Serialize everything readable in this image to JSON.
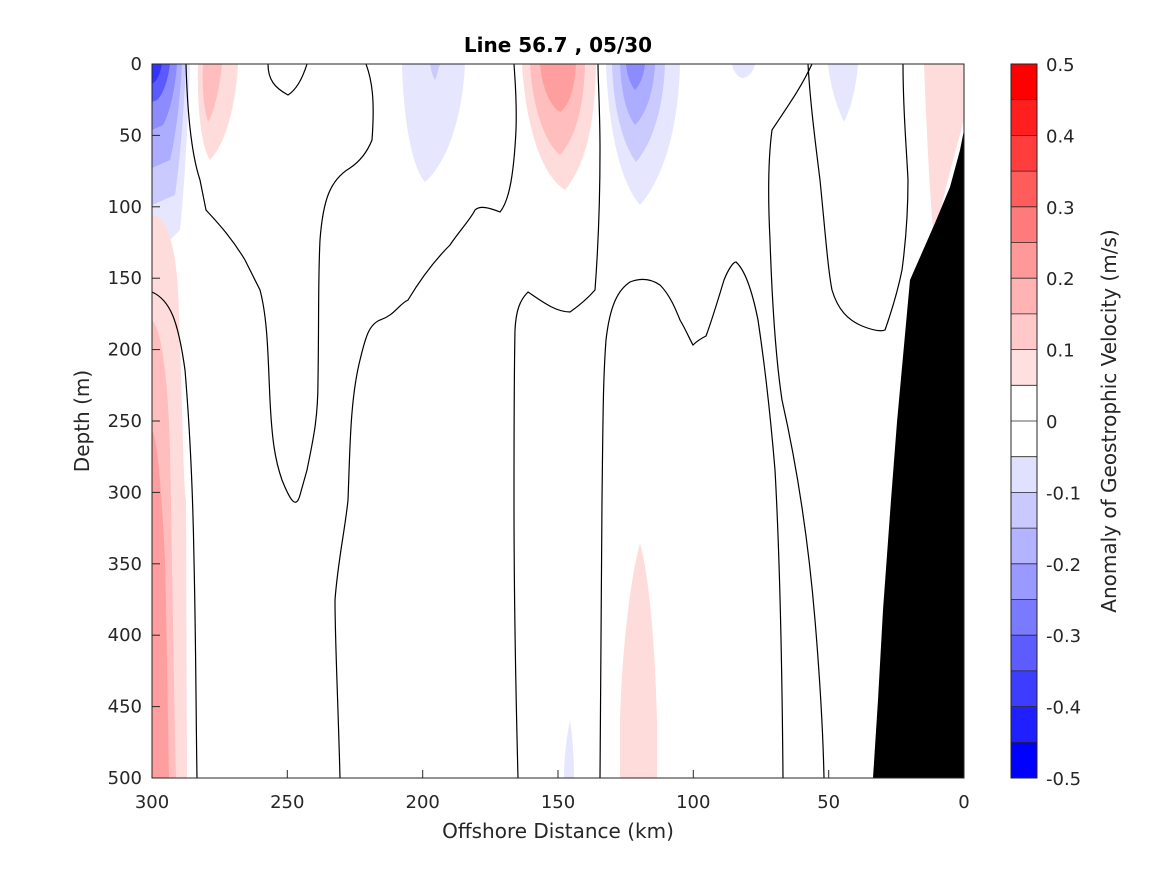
{
  "chart_data": {
    "type": "heatmap",
    "title": "Line 56.7 , 05/30",
    "xlabel": "Offshore Distance (km)",
    "ylabel": "Depth (m)",
    "x_direction": "reversed",
    "xlim": [
      0,
      300
    ],
    "ylim": [
      0,
      500
    ],
    "x_ticks": [
      "300",
      "250",
      "200",
      "150",
      "100",
      "50",
      "0"
    ],
    "y_ticks": [
      "0",
      "50",
      "100",
      "150",
      "200",
      "250",
      "300",
      "350",
      "400",
      "450",
      "500"
    ],
    "colorbar": {
      "label": "Anomaly of Geostrophic Velocity (m/s)",
      "range": [
        -0.5,
        0.5
      ],
      "tick_labels": [
        "0.5",
        "0.4",
        "0.3",
        "0.2",
        "0.1",
        "0",
        "-0.1",
        "-0.2",
        "-0.3",
        "-0.4",
        "-0.5"
      ],
      "levels": [
        0.5,
        0.45,
        0.4,
        0.35,
        0.3,
        0.25,
        0.2,
        0.15,
        0.1,
        0.05,
        0,
        -0.05,
        -0.1,
        -0.15,
        -0.2,
        -0.25,
        -0.3,
        -0.35,
        -0.4,
        -0.45,
        -0.5
      ]
    },
    "anomaly_regions": [
      {
        "sign": "negative",
        "value": -0.35,
        "x_range": [
          289,
          300
        ],
        "depth_range": [
          0,
          130
        ]
      },
      {
        "sign": "positive",
        "value": 0.15,
        "x_range": [
          268,
          281
        ],
        "depth_range": [
          0,
          65
        ]
      },
      {
        "sign": "negative",
        "value": -0.1,
        "x_range": [
          186,
          205
        ],
        "depth_range": [
          0,
          82
        ]
      },
      {
        "sign": "positive",
        "value": 0.25,
        "x_range": [
          136,
          167
        ],
        "depth_range": [
          0,
          115
        ]
      },
      {
        "sign": "negative",
        "value": -0.25,
        "x_range": [
          107,
          135
        ],
        "depth_range": [
          0,
          100
        ]
      },
      {
        "sign": "negative",
        "value": -0.05,
        "x_range": [
          40,
          50
        ],
        "depth_range": [
          0,
          40
        ]
      },
      {
        "sign": "positive",
        "value": 0.1,
        "x_range": [
          287,
          300
        ],
        "depth_range": [
          215,
          500
        ]
      },
      {
        "sign": "positive",
        "value": 0.2,
        "x_range": [
          290,
          300
        ],
        "depth_range": [
          430,
          500
        ]
      },
      {
        "sign": "positive",
        "value": 0.1,
        "x_range": [
          114,
          127
        ],
        "depth_range": [
          335,
          500
        ]
      },
      {
        "sign": "positive",
        "value": 0.1,
        "x_range": [
          1,
          14
        ],
        "depth_range": [
          0,
          115
        ]
      }
    ],
    "grid": false,
    "bathymetry": "black (seafloor) on right side"
  }
}
